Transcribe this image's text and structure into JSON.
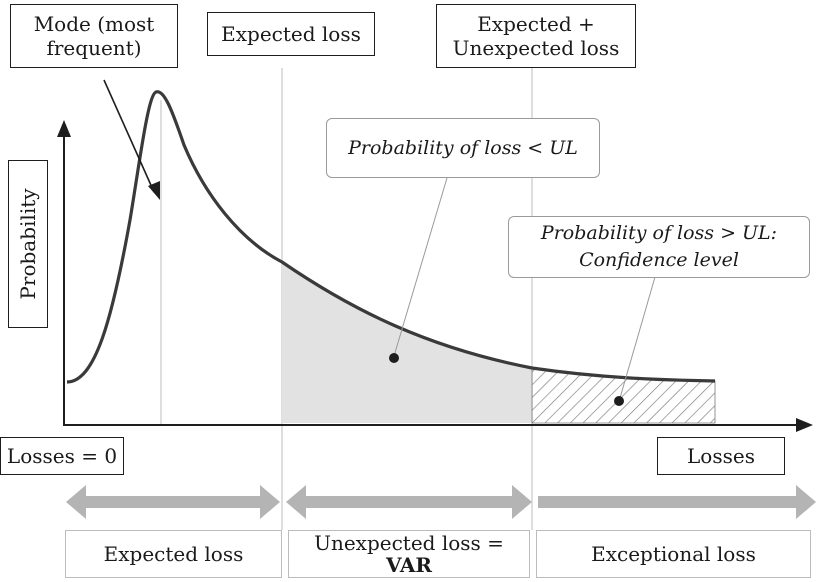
{
  "top_labels": {
    "mode": "Mode (most frequent)",
    "expected_loss": "Expected loss",
    "expected_unexpected": "Expected + Unexpected loss"
  },
  "axis": {
    "y_label": "Probability",
    "x_label": "Losses",
    "origin_label": "Losses = 0"
  },
  "callouts": {
    "lt_ul": "Probability of loss < UL",
    "gt_ul_line1": "Probability of loss > UL:",
    "gt_ul_line2": "Confidence level"
  },
  "bottom": {
    "expected_loss": "Expected loss",
    "unexpected_line1": "Unexpected loss =",
    "unexpected_line2": "VAR",
    "exceptional_loss": "Exceptional loss"
  },
  "colors": {
    "curve": "#3a3a3a",
    "shade": "#e2e2e2",
    "arrow": "#b4b4b4",
    "guide": "#c8c8c8",
    "border": "#1e1e1e"
  }
}
